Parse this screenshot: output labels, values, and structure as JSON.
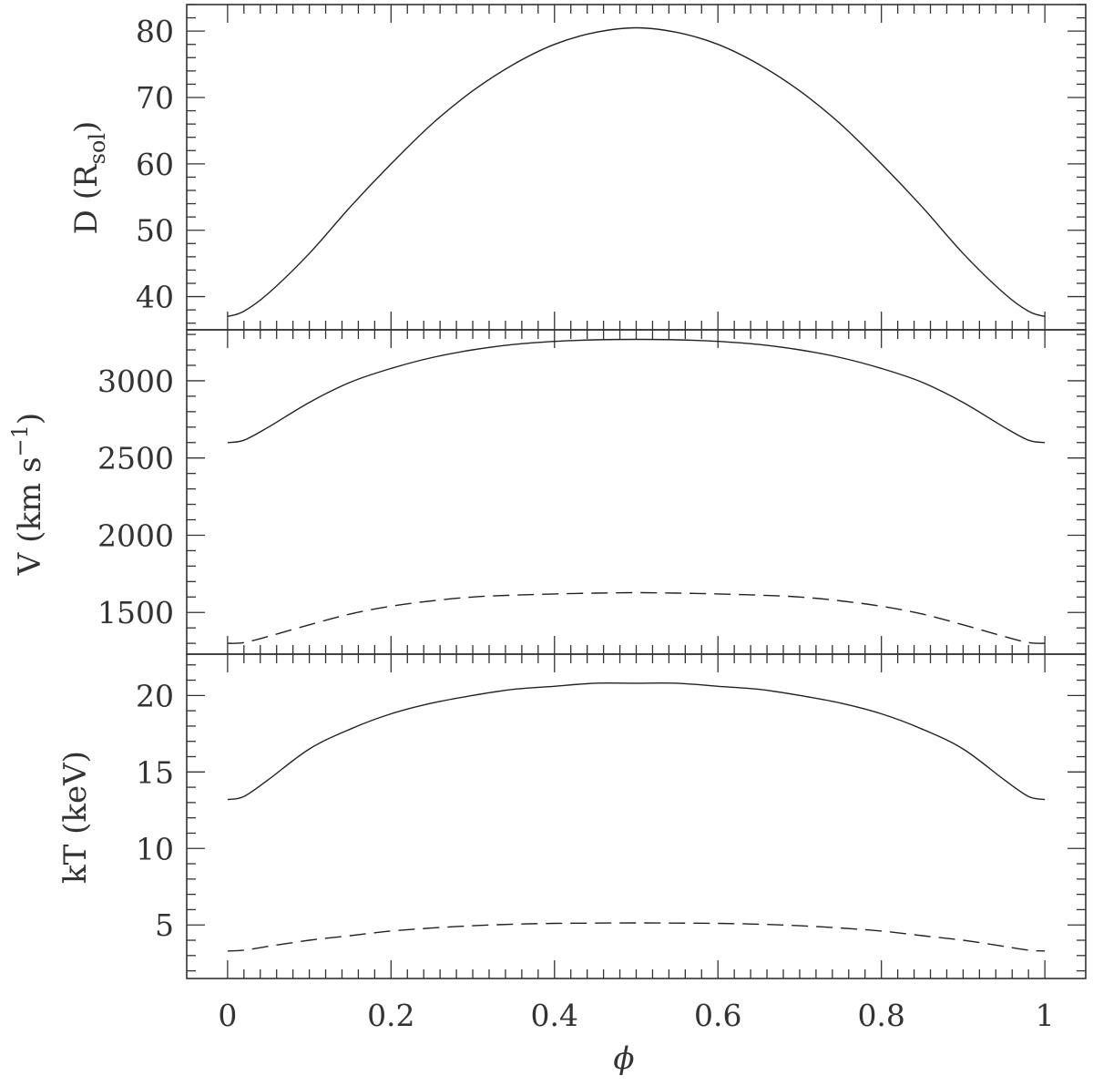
{
  "chart_data": [
    {
      "type": "line",
      "panel": "top",
      "ylabel": "D (R",
      "ylabel_sub": "sol",
      "ylabel_close": ")",
      "xlim": [
        -0.05,
        1.05
      ],
      "ylim": [
        35,
        84
      ],
      "x_major_ticks": [
        0,
        0.2,
        0.4,
        0.6,
        0.8,
        1
      ],
      "y_major_ticks": [
        40,
        50,
        60,
        70,
        80
      ],
      "y_tick_labels": [
        "40",
        "50",
        "60",
        "70",
        "80"
      ],
      "series": [
        {
          "style": "solid",
          "x": [
            0,
            0.02,
            0.05,
            0.1,
            0.15,
            0.2,
            0.25,
            0.3,
            0.35,
            0.4,
            0.45,
            0.5,
            0.55,
            0.6,
            0.65,
            0.7,
            0.75,
            0.8,
            0.85,
            0.9,
            0.95,
            0.98,
            1
          ],
          "y": [
            37.0,
            37.8,
            40.5,
            46.5,
            53.5,
            60.0,
            66.0,
            71.0,
            75.0,
            78.0,
            79.8,
            80.5,
            79.8,
            78.0,
            75.0,
            71.0,
            66.0,
            60.0,
            53.5,
            46.5,
            40.5,
            37.8,
            37.0
          ]
        }
      ]
    },
    {
      "type": "line",
      "panel": "middle",
      "ylabel": "V (km s",
      "ylabel_sup": "−1",
      "ylabel_close": ")",
      "xlim": [
        -0.05,
        1.05
      ],
      "ylim": [
        1230,
        3330
      ],
      "x_major_ticks": [
        0,
        0.2,
        0.4,
        0.6,
        0.8,
        1
      ],
      "y_major_ticks": [
        1500,
        2000,
        2500,
        3000
      ],
      "y_tick_labels": [
        "1500",
        "2000",
        "2500",
        "3000"
      ],
      "series": [
        {
          "style": "solid",
          "x": [
            0,
            0.02,
            0.05,
            0.1,
            0.15,
            0.2,
            0.25,
            0.3,
            0.35,
            0.4,
            0.45,
            0.5,
            0.55,
            0.6,
            0.65,
            0.7,
            0.75,
            0.8,
            0.85,
            0.9,
            0.95,
            0.98,
            1
          ],
          "y": [
            2600,
            2615,
            2700,
            2860,
            2990,
            3080,
            3150,
            3200,
            3235,
            3255,
            3265,
            3268,
            3265,
            3255,
            3235,
            3200,
            3150,
            3080,
            2990,
            2860,
            2700,
            2615,
            2600
          ]
        },
        {
          "style": "dashed",
          "x": [
            0,
            0.02,
            0.05,
            0.1,
            0.15,
            0.2,
            0.25,
            0.3,
            0.35,
            0.4,
            0.45,
            0.5,
            0.55,
            0.6,
            0.65,
            0.7,
            0.75,
            0.8,
            0.85,
            0.9,
            0.95,
            0.98,
            1
          ],
          "y": [
            1300,
            1305,
            1345,
            1420,
            1490,
            1540,
            1575,
            1600,
            1612,
            1620,
            1625,
            1628,
            1625,
            1620,
            1612,
            1600,
            1575,
            1540,
            1490,
            1420,
            1345,
            1305,
            1300
          ]
        }
      ]
    },
    {
      "type": "line",
      "panel": "bottom",
      "ylabel": "kT (keV)",
      "xlabel": "ϕ",
      "xlim": [
        -0.05,
        1.05
      ],
      "ylim": [
        1.5,
        22.7
      ],
      "x_major_ticks": [
        0,
        0.2,
        0.4,
        0.6,
        0.8,
        1
      ],
      "x_tick_labels": [
        "0",
        "0.2",
        "0.4",
        "0.6",
        "0.8",
        "1"
      ],
      "y_major_ticks": [
        5,
        10,
        15,
        20
      ],
      "y_tick_labels": [
        "5",
        "10",
        "15",
        "20"
      ],
      "series": [
        {
          "style": "solid",
          "x": [
            0,
            0.02,
            0.05,
            0.1,
            0.15,
            0.2,
            0.25,
            0.3,
            0.35,
            0.4,
            0.45,
            0.5,
            0.55,
            0.6,
            0.65,
            0.7,
            0.75,
            0.8,
            0.85,
            0.9,
            0.95,
            0.98,
            1
          ],
          "y": [
            13.2,
            13.4,
            14.5,
            16.5,
            17.8,
            18.8,
            19.5,
            20.0,
            20.4,
            20.6,
            20.8,
            20.8,
            20.8,
            20.6,
            20.4,
            20.0,
            19.5,
            18.8,
            17.8,
            16.5,
            14.5,
            13.4,
            13.2
          ]
        },
        {
          "style": "dashed",
          "x": [
            0,
            0.02,
            0.05,
            0.1,
            0.15,
            0.2,
            0.25,
            0.3,
            0.35,
            0.4,
            0.45,
            0.5,
            0.55,
            0.6,
            0.65,
            0.7,
            0.75,
            0.8,
            0.85,
            0.9,
            0.95,
            0.98,
            1
          ],
          "y": [
            3.3,
            3.35,
            3.6,
            4.0,
            4.3,
            4.6,
            4.8,
            4.95,
            5.05,
            5.1,
            5.12,
            5.13,
            5.12,
            5.1,
            5.05,
            4.95,
            4.8,
            4.6,
            4.3,
            4.0,
            3.6,
            3.35,
            3.3
          ]
        }
      ]
    }
  ]
}
